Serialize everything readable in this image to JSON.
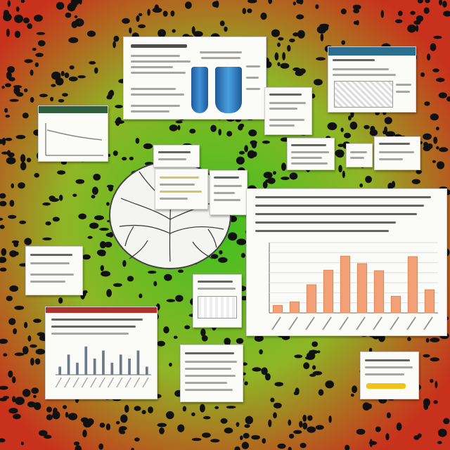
{
  "scene": {
    "background": {
      "base_color": "#c8321c",
      "center_color": "#3fbf1f",
      "spot_color": "#111111"
    },
    "accent_colors": {
      "bar_orange": "#f2a176",
      "bar_blue": "#2f7fc4",
      "header_teal": "#2a6f8f",
      "header_red": "#b0302a",
      "highlight_yellow": "#f2c21c"
    }
  },
  "chart_data": {
    "type": "bar",
    "categories": [
      "",
      "",
      "",
      "",
      "",
      "",
      "",
      "",
      "",
      ""
    ],
    "values": [
      1.5,
      2.2,
      5.6,
      8.5,
      11.3,
      9.8,
      8.4,
      3.3,
      11.2,
      4.6
    ],
    "ylim": [
      0,
      14
    ],
    "grid": true
  },
  "small_chart": {
    "type": "bar",
    "values": [
      2,
      5,
      3,
      7,
      4,
      6,
      3,
      5,
      4,
      6,
      2
    ],
    "ylim": [
      0,
      8
    ]
  }
}
